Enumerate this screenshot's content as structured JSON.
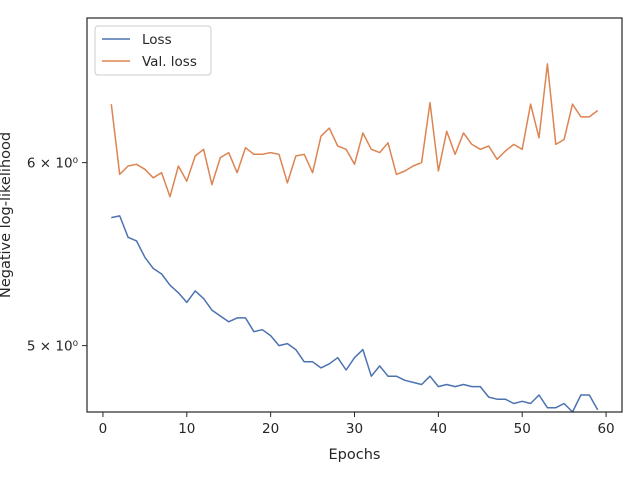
{
  "chart_data": {
    "type": "line",
    "xlabel": "Epochs",
    "ylabel": "Negative log-likelihood",
    "yscale": "log",
    "xlim": [
      -1.9,
      61.9
    ],
    "ylim": [
      4.68,
      6.93
    ],
    "x_ticks": [
      0,
      10,
      20,
      30,
      40,
      50,
      60
    ],
    "x_tick_labels": [
      "0",
      "10",
      "20",
      "30",
      "40",
      "50",
      "60"
    ],
    "y_ticks": [
      5,
      6
    ],
    "y_tick_labels": [
      "5 × 10⁰",
      "6 × 10⁰"
    ],
    "grid": false,
    "legend_position": "upper-left",
    "x": [
      1,
      2,
      3,
      4,
      5,
      6,
      7,
      8,
      9,
      10,
      11,
      12,
      13,
      14,
      15,
      16,
      17,
      18,
      19,
      20,
      21,
      22,
      23,
      24,
      25,
      26,
      27,
      28,
      29,
      30,
      31,
      32,
      33,
      34,
      35,
      36,
      37,
      38,
      39,
      40,
      41,
      42,
      43,
      44,
      45,
      46,
      47,
      48,
      49,
      50,
      51,
      52,
      53,
      54,
      55,
      56,
      57,
      58,
      59
    ],
    "series": [
      {
        "name": "Loss",
        "color": "#4c72b0",
        "values": [
          5.68,
          5.69,
          5.57,
          5.55,
          5.46,
          5.4,
          5.37,
          5.31,
          5.27,
          5.22,
          5.28,
          5.24,
          5.18,
          5.15,
          5.12,
          5.14,
          5.14,
          5.07,
          5.08,
          5.05,
          5.0,
          5.01,
          4.98,
          4.92,
          4.92,
          4.89,
          4.91,
          4.94,
          4.88,
          4.94,
          4.98,
          4.85,
          4.9,
          4.85,
          4.85,
          4.83,
          4.82,
          4.81,
          4.85,
          4.8,
          4.81,
          4.8,
          4.81,
          4.8,
          4.8,
          4.75,
          4.74,
          4.74,
          4.72,
          4.73,
          4.72,
          4.76,
          4.7,
          4.7,
          4.72,
          4.68,
          4.76,
          4.76,
          4.69
        ]
      },
      {
        "name": "Val. loss",
        "color": "#dd8452",
        "values": [
          6.36,
          5.93,
          5.98,
          5.99,
          5.96,
          5.91,
          5.94,
          5.8,
          5.98,
          5.89,
          6.04,
          6.08,
          5.87,
          6.03,
          6.06,
          5.94,
          6.09,
          6.05,
          6.05,
          6.06,
          6.05,
          5.88,
          6.04,
          6.05,
          5.94,
          6.16,
          6.21,
          6.1,
          6.08,
          5.99,
          6.18,
          6.08,
          6.06,
          6.12,
          5.93,
          5.95,
          5.98,
          6.0,
          6.37,
          5.95,
          6.19,
          6.05,
          6.18,
          6.11,
          6.08,
          6.1,
          6.02,
          6.07,
          6.11,
          6.08,
          6.36,
          6.15,
          6.62,
          6.11,
          6.14,
          6.36,
          6.28,
          6.28,
          6.32
        ]
      }
    ]
  }
}
